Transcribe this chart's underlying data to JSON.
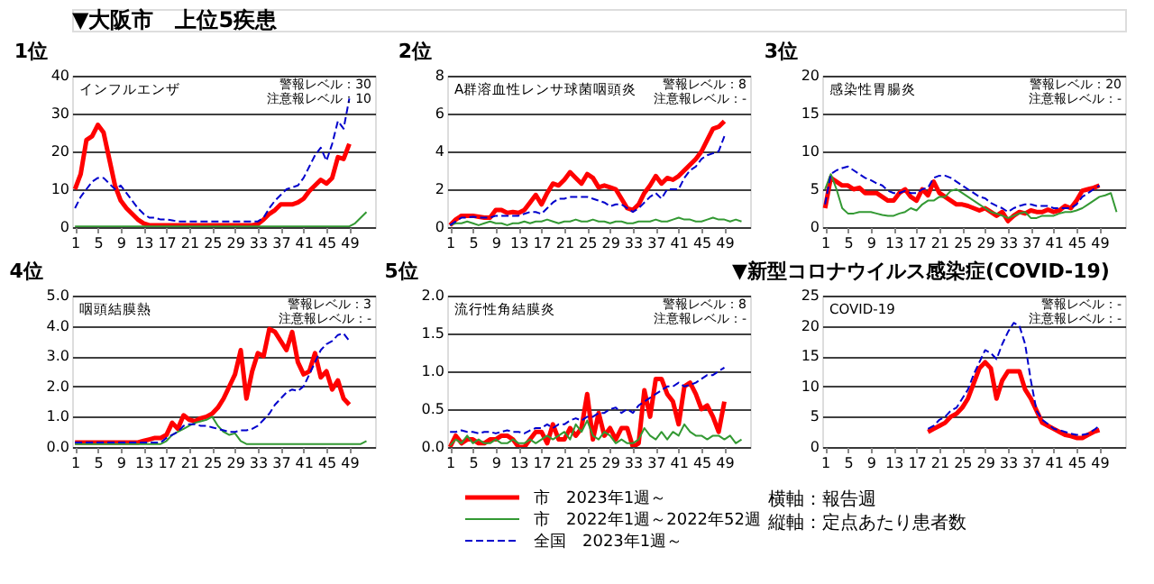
{
  "chart_data": [
    {
      "type": "other",
      "title": "▼大阪市　上位5疾患"
    },
    {
      "type": "line",
      "title": "1位",
      "annotations": [
        "インフルエンザ",
        "警報レベル：30",
        "注意報レベル：10"
      ],
      "xlim": [
        0.5,
        53.5
      ],
      "xticks": [
        1,
        5,
        9,
        13,
        17,
        21,
        25,
        29,
        33,
        37,
        41,
        45,
        49
      ],
      "ylim": [
        0,
        40
      ],
      "yticks": [
        0,
        10,
        20,
        30,
        40
      ],
      "grid": "y",
      "marker": "none",
      "legend": false,
      "x": [
        1,
        2,
        3,
        4,
        5,
        6,
        7,
        8,
        9,
        10,
        11,
        12,
        13,
        14,
        15,
        16,
        17,
        18,
        19,
        20,
        21,
        22,
        23,
        24,
        25,
        26,
        27,
        28,
        29,
        30,
        31,
        32,
        33,
        34,
        35,
        36,
        37,
        38,
        39,
        40,
        41,
        42,
        43,
        44,
        45,
        46,
        47,
        48,
        49,
        50,
        51,
        52
      ],
      "series": [
        {
          "color": "#ff0000",
          "line_style": "solid",
          "x": [
            1,
            2,
            3,
            4,
            5,
            6,
            7,
            8,
            9,
            10,
            11,
            12,
            13,
            14,
            15,
            16,
            17,
            18,
            19,
            20,
            21,
            22,
            23,
            24,
            25,
            26,
            27,
            28,
            29,
            30,
            31,
            32,
            33,
            34,
            35,
            36,
            37,
            38,
            39,
            40,
            41,
            42,
            43,
            44,
            45,
            46,
            47,
            48,
            49
          ],
          "values": [
            10,
            14,
            23,
            24,
            27,
            25,
            18,
            11,
            7,
            5,
            3.5,
            2,
            1,
            0.5,
            0.5,
            0.5,
            0.5,
            0.5,
            0.5,
            0.5,
            0.5,
            0.5,
            0.5,
            0.5,
            0.5,
            0.5,
            0.5,
            0.5,
            0.5,
            0.5,
            0.5,
            0.5,
            0.8,
            2,
            3.5,
            4.5,
            6,
            6,
            6,
            6.5,
            7.5,
            9.5,
            11,
            12.5,
            11.5,
            13,
            18.5,
            18,
            22
          ]
        },
        {
          "color": "#339933",
          "line_style": "solid",
          "values": [
            0.2,
            0.2,
            0.2,
            0.2,
            0.2,
            0.2,
            0.2,
            0.2,
            0.2,
            0.2,
            0.2,
            0.2,
            0.2,
            0.2,
            0.2,
            0.2,
            0.2,
            0.2,
            0.2,
            0.2,
            0.2,
            0.2,
            0.2,
            0.2,
            0.2,
            0.2,
            0.2,
            0.2,
            0.2,
            0.2,
            0.2,
            0.2,
            0.2,
            0.2,
            0.2,
            0.2,
            0.2,
            0.2,
            0.2,
            0.2,
            0.2,
            0.2,
            0.2,
            0.2,
            0.2,
            0.2,
            0.2,
            0.2,
            0.2,
            1,
            2.5,
            4
          ]
        },
        {
          "color": "#0000cc",
          "line_style": "dashed",
          "x": [
            1,
            2,
            3,
            4,
            5,
            6,
            7,
            8,
            9,
            10,
            11,
            12,
            13,
            14,
            15,
            16,
            17,
            18,
            19,
            20,
            21,
            22,
            23,
            24,
            25,
            26,
            27,
            28,
            29,
            30,
            31,
            32,
            33,
            34,
            35,
            36,
            37,
            38,
            39,
            40,
            41,
            42,
            43,
            44,
            45,
            46,
            47,
            48,
            49
          ],
          "values": [
            5,
            8,
            10,
            12,
            13,
            13,
            11.5,
            10,
            11,
            9,
            7,
            5,
            3.5,
            2.5,
            2.5,
            2,
            2,
            1.8,
            1.5,
            1.5,
            1.5,
            1.5,
            1.5,
            1.5,
            1.5,
            1.5,
            1.5,
            1.5,
            1.5,
            1.5,
            1.5,
            1.5,
            1.5,
            2.5,
            5,
            7,
            8.5,
            10,
            10.5,
            11,
            13,
            16,
            19,
            21,
            17.5,
            22,
            28,
            26,
            34
          ]
        }
      ]
    },
    {
      "type": "line",
      "title": "2位",
      "annotations": [
        "A群溶血性レンサ球菌咽頭炎",
        "警報レベル：8",
        "注意報レベル：-"
      ],
      "xlim": [
        0.5,
        53.5
      ],
      "xticks": [
        1,
        5,
        9,
        13,
        17,
        21,
        25,
        29,
        33,
        37,
        41,
        45,
        49
      ],
      "ylim": [
        0,
        8
      ],
      "yticks": [
        0,
        2,
        4,
        6,
        8
      ],
      "grid": "y",
      "marker": "none",
      "legend": false,
      "x": [
        1,
        2,
        3,
        4,
        5,
        6,
        7,
        8,
        9,
        10,
        11,
        12,
        13,
        14,
        15,
        16,
        17,
        18,
        19,
        20,
        21,
        22,
        23,
        24,
        25,
        26,
        27,
        28,
        29,
        30,
        31,
        32,
        33,
        34,
        35,
        36,
        37,
        38,
        39,
        40,
        41,
        42,
        43,
        44,
        45,
        46,
        47,
        48,
        49,
        50,
        51,
        52
      ],
      "series": [
        {
          "color": "#ff0000",
          "line_style": "solid",
          "x": [
            1,
            2,
            3,
            4,
            5,
            6,
            7,
            8,
            9,
            10,
            11,
            12,
            13,
            14,
            15,
            16,
            17,
            18,
            19,
            20,
            21,
            22,
            23,
            24,
            25,
            26,
            27,
            28,
            29,
            30,
            31,
            32,
            33,
            34,
            35,
            36,
            37,
            38,
            39,
            40,
            41,
            42,
            43,
            44,
            45,
            46,
            47,
            48,
            49
          ],
          "values": [
            0.1,
            0.4,
            0.6,
            0.6,
            0.6,
            0.55,
            0.5,
            0.5,
            0.9,
            0.9,
            0.75,
            0.8,
            0.75,
            0.9,
            1.3,
            1.7,
            1.2,
            1.8,
            2.3,
            2.2,
            2.5,
            2.9,
            2.6,
            2.3,
            2.8,
            2.6,
            2.1,
            2.2,
            2.1,
            2.0,
            1.5,
            1.0,
            0.9,
            1.2,
            1.8,
            2.2,
            2.7,
            2.3,
            2.6,
            2.5,
            2.7,
            3.0,
            3.3,
            3.6,
            4.0,
            4.6,
            5.2,
            5.3,
            5.6
          ]
        },
        {
          "color": "#339933",
          "line_style": "solid",
          "values": [
            0.1,
            0.2,
            0.2,
            0.3,
            0.2,
            0.1,
            0.2,
            0.3,
            0.2,
            0.2,
            0.1,
            0.2,
            0.2,
            0.3,
            0.2,
            0.3,
            0.3,
            0.4,
            0.3,
            0.2,
            0.3,
            0.3,
            0.4,
            0.3,
            0.3,
            0.4,
            0.3,
            0.3,
            0.2,
            0.3,
            0.3,
            0.2,
            0.2,
            0.3,
            0.3,
            0.3,
            0.4,
            0.3,
            0.3,
            0.4,
            0.5,
            0.4,
            0.4,
            0.3,
            0.3,
            0.4,
            0.5,
            0.4,
            0.4,
            0.3,
            0.4,
            0.3
          ]
        },
        {
          "color": "#0000cc",
          "line_style": "dashed",
          "x": [
            1,
            2,
            3,
            4,
            5,
            6,
            7,
            8,
            9,
            10,
            11,
            12,
            13,
            14,
            15,
            16,
            17,
            18,
            19,
            20,
            21,
            22,
            23,
            24,
            25,
            26,
            27,
            28,
            29,
            30,
            31,
            32,
            33,
            34,
            35,
            36,
            37,
            38,
            39,
            40,
            41,
            42,
            43,
            44,
            45,
            46,
            47,
            48,
            49
          ],
          "values": [
            0.1,
            0.3,
            0.5,
            0.5,
            0.55,
            0.5,
            0.5,
            0.5,
            0.6,
            0.6,
            0.6,
            0.6,
            0.6,
            0.7,
            0.8,
            0.8,
            0.7,
            1.0,
            1.3,
            1.5,
            1.5,
            1.6,
            1.6,
            1.6,
            1.6,
            1.5,
            1.4,
            1.3,
            1.1,
            1.2,
            1.2,
            1.0,
            0.8,
            1.0,
            1.3,
            1.6,
            1.8,
            1.5,
            2.0,
            2.0,
            2.0,
            2.6,
            3.0,
            3.2,
            3.6,
            3.8,
            3.9,
            4.0,
            4.8
          ]
        }
      ]
    },
    {
      "type": "line",
      "title": "3位",
      "annotations": [
        "感染性胃腸炎",
        "警報レベル：20",
        "注意報レベル：-"
      ],
      "xlim": [
        0.5,
        53.5
      ],
      "xticks": [
        1,
        5,
        9,
        13,
        17,
        21,
        25,
        29,
        33,
        37,
        41,
        45,
        49
      ],
      "ylim": [
        0,
        20
      ],
      "yticks": [
        0,
        5,
        10,
        15,
        20
      ],
      "grid": "y",
      "marker": "none",
      "legend": false,
      "x": [
        1,
        2,
        3,
        4,
        5,
        6,
        7,
        8,
        9,
        10,
        11,
        12,
        13,
        14,
        15,
        16,
        17,
        18,
        19,
        20,
        21,
        22,
        23,
        24,
        25,
        26,
        27,
        28,
        29,
        30,
        31,
        32,
        33,
        34,
        35,
        36,
        37,
        38,
        39,
        40,
        41,
        42,
        43,
        44,
        45,
        46,
        47,
        48,
        49,
        50,
        51,
        52
      ],
      "series": [
        {
          "color": "#ff0000",
          "line_style": "solid",
          "x": [
            1,
            2,
            3,
            4,
            5,
            6,
            7,
            8,
            9,
            10,
            11,
            12,
            13,
            14,
            15,
            16,
            17,
            18,
            19,
            20,
            21,
            22,
            23,
            24,
            25,
            26,
            27,
            28,
            29,
            30,
            31,
            32,
            33,
            34,
            35,
            36,
            37,
            38,
            39,
            40,
            41,
            42,
            43,
            44,
            45,
            46,
            47,
            48,
            49
          ],
          "values": [
            2.5,
            6.5,
            6,
            5.5,
            5.5,
            5,
            5.2,
            4.5,
            4.5,
            4.5,
            4,
            3.5,
            3.5,
            4.5,
            5,
            4,
            3.5,
            5,
            4.2,
            6,
            4.5,
            4,
            3.5,
            3,
            3,
            2.8,
            2.5,
            2.2,
            2.5,
            2,
            1.5,
            2,
            0.8,
            1.5,
            2,
            1.8,
            2.2,
            2,
            2,
            2.3,
            2,
            2.2,
            2.8,
            2.5,
            3.5,
            4.8,
            5,
            5.2,
            5.5
          ]
        },
        {
          "color": "#339933",
          "line_style": "solid",
          "values": [
            5,
            7,
            5,
            2.5,
            1.8,
            1.8,
            2,
            2,
            2,
            1.8,
            1.6,
            1.5,
            1.5,
            1.8,
            2,
            2.5,
            2.2,
            3,
            3.5,
            3.5,
            4,
            4,
            4.8,
            5,
            4.5,
            4,
            3.5,
            3,
            2.5,
            2,
            1.8,
            1.5,
            1.2,
            1.5,
            1.8,
            2,
            1.2,
            1.2,
            1.5,
            1.5,
            1.5,
            1.8,
            2,
            2,
            2.2,
            2.5,
            3,
            3.5,
            4,
            4.2,
            4.5,
            2
          ]
        },
        {
          "color": "#0000cc",
          "line_style": "dashed",
          "x": [
            1,
            2,
            3,
            4,
            5,
            6,
            7,
            8,
            9,
            10,
            11,
            12,
            13,
            14,
            15,
            16,
            17,
            18,
            19,
            20,
            21,
            22,
            23,
            24,
            25,
            26,
            27,
            28,
            29,
            30,
            31,
            32,
            33,
            34,
            35,
            36,
            37,
            38,
            39,
            40,
            41,
            42,
            43,
            44,
            45,
            46,
            47,
            48,
            49
          ],
          "values": [
            3,
            7,
            7.5,
            7.8,
            8,
            7.5,
            7,
            6.5,
            6.2,
            5.8,
            5.5,
            4.8,
            4.5,
            4.5,
            4.8,
            4.5,
            4.5,
            5,
            5.2,
            6.5,
            6.8,
            6.8,
            6.5,
            6,
            5.5,
            5,
            4.5,
            4,
            3.8,
            3.2,
            2.8,
            2.5,
            2,
            2.5,
            2.8,
            3,
            3,
            2.8,
            2.8,
            2.8,
            2.5,
            2.5,
            2.5,
            2.5,
            3,
            4,
            4.5,
            5,
            5.5
          ]
        }
      ]
    },
    {
      "type": "line",
      "title": "4位",
      "annotations": [
        "咽頭結膜熱",
        "警報レベル：3",
        "注意報レベル：-"
      ],
      "xlim": [
        0.5,
        53.5
      ],
      "xticks": [
        1,
        5,
        9,
        13,
        17,
        21,
        25,
        29,
        33,
        37,
        41,
        45,
        49
      ],
      "ylim": [
        0,
        5
      ],
      "yticks": [
        {
          "value": 0,
          "label": "0.0"
        },
        {
          "value": 1,
          "label": "1.0"
        },
        {
          "value": 2,
          "label": "2.0"
        },
        {
          "value": 3,
          "label": "3.0"
        },
        {
          "value": 4,
          "label": "4.0"
        },
        {
          "value": 5,
          "label": "5.0"
        }
      ],
      "grid": "y",
      "marker": "none",
      "legend": false,
      "x": [
        1,
        2,
        3,
        4,
        5,
        6,
        7,
        8,
        9,
        10,
        11,
        12,
        13,
        14,
        15,
        16,
        17,
        18,
        19,
        20,
        21,
        22,
        23,
        24,
        25,
        26,
        27,
        28,
        29,
        30,
        31,
        32,
        33,
        34,
        35,
        36,
        37,
        38,
        39,
        40,
        41,
        42,
        43,
        44,
        45,
        46,
        47,
        48,
        49,
        50,
        51,
        52
      ],
      "series": [
        {
          "color": "#ff0000",
          "line_style": "solid",
          "x": [
            1,
            2,
            3,
            4,
            5,
            6,
            7,
            8,
            9,
            10,
            11,
            12,
            13,
            14,
            15,
            16,
            17,
            18,
            19,
            20,
            21,
            22,
            23,
            24,
            25,
            26,
            27,
            28,
            29,
            30,
            31,
            32,
            33,
            34,
            35,
            36,
            37,
            38,
            39,
            40,
            41,
            42,
            43,
            44,
            45,
            46,
            47,
            48,
            49
          ],
          "values": [
            0.15,
            0.15,
            0.15,
            0.15,
            0.15,
            0.15,
            0.15,
            0.15,
            0.15,
            0.15,
            0.15,
            0.15,
            0.2,
            0.25,
            0.3,
            0.3,
            0.4,
            0.8,
            0.6,
            1.05,
            0.9,
            0.85,
            0.95,
            1.0,
            1.1,
            1.3,
            1.6,
            2.0,
            2.4,
            3.2,
            1.6,
            2.5,
            3.1,
            3.0,
            3.9,
            3.8,
            3.5,
            3.2,
            3.8,
            2.8,
            2.4,
            2.5,
            3.1,
            2.3,
            2.5,
            1.9,
            2.2,
            1.6,
            1.4
          ]
        },
        {
          "color": "#339933",
          "line_style": "solid",
          "values": [
            0.1,
            0.1,
            0.1,
            0.1,
            0.1,
            0.1,
            0.1,
            0.1,
            0.1,
            0.1,
            0.1,
            0.1,
            0.1,
            0.1,
            0.1,
            0.1,
            0.2,
            0.4,
            0.5,
            0.6,
            0.7,
            0.8,
            0.85,
            0.9,
            1.0,
            0.7,
            0.5,
            0.4,
            0.45,
            0.2,
            0.1,
            0.1,
            0.1,
            0.1,
            0.1,
            0.1,
            0.1,
            0.1,
            0.1,
            0.1,
            0.1,
            0.1,
            0.1,
            0.1,
            0.1,
            0.1,
            0.1,
            0.1,
            0.1,
            0.1,
            0.1,
            0.2
          ]
        },
        {
          "color": "#0000cc",
          "line_style": "dashed",
          "x": [
            1,
            2,
            3,
            4,
            5,
            6,
            7,
            8,
            9,
            10,
            11,
            12,
            13,
            14,
            15,
            16,
            17,
            18,
            19,
            20,
            21,
            22,
            23,
            24,
            25,
            26,
            27,
            28,
            29,
            30,
            31,
            32,
            33,
            34,
            35,
            36,
            37,
            38,
            39,
            40,
            41,
            42,
            43,
            44,
            45,
            46,
            47,
            48,
            49
          ],
          "values": [
            0.15,
            0.15,
            0.15,
            0.15,
            0.15,
            0.15,
            0.15,
            0.15,
            0.15,
            0.15,
            0.15,
            0.15,
            0.15,
            0.15,
            0.15,
            0.15,
            0.3,
            0.4,
            0.5,
            0.7,
            0.75,
            0.75,
            0.7,
            0.7,
            0.65,
            0.6,
            0.55,
            0.5,
            0.5,
            0.55,
            0.55,
            0.6,
            0.7,
            0.9,
            1.1,
            1.4,
            1.6,
            1.8,
            1.9,
            1.85,
            2.0,
            2.4,
            2.8,
            3.2,
            3.4,
            3.5,
            3.7,
            3.75,
            3.5
          ]
        }
      ]
    },
    {
      "type": "line",
      "title": "5位",
      "annotations": [
        "流行性角結膜炎",
        "警報レベル：8",
        "注意報レベル：-"
      ],
      "xlim": [
        0.5,
        53.5
      ],
      "xticks": [
        1,
        5,
        9,
        13,
        17,
        21,
        25,
        29,
        33,
        37,
        41,
        45,
        49
      ],
      "ylim": [
        0,
        2
      ],
      "yticks": [
        {
          "value": 0,
          "label": "0.0"
        },
        {
          "value": 0.5,
          "label": "0.5"
        },
        {
          "value": 1,
          "label": "1.0"
        },
        {
          "value": 1.5,
          "label": "1.5"
        },
        {
          "value": 2,
          "label": "2.0"
        }
      ],
      "grid": "y",
      "marker": "none",
      "legend": "bottom",
      "x": [
        1,
        2,
        3,
        4,
        5,
        6,
        7,
        8,
        9,
        10,
        11,
        12,
        13,
        14,
        15,
        16,
        17,
        18,
        19,
        20,
        21,
        22,
        23,
        24,
        25,
        26,
        27,
        28,
        29,
        30,
        31,
        32,
        33,
        34,
        35,
        36,
        37,
        38,
        39,
        40,
        41,
        42,
        43,
        44,
        45,
        46,
        47,
        48,
        49,
        50,
        51,
        52
      ],
      "series": [
        {
          "name": "市　2023年1週～",
          "color": "#ff0000",
          "line_style": "solid",
          "x": [
            1,
            2,
            3,
            4,
            5,
            6,
            7,
            8,
            9,
            10,
            11,
            12,
            13,
            14,
            15,
            16,
            17,
            18,
            19,
            20,
            21,
            22,
            23,
            24,
            25,
            26,
            27,
            28,
            29,
            30,
            31,
            32,
            33,
            34,
            35,
            36,
            37,
            38,
            39,
            40,
            41,
            42,
            43,
            44,
            45,
            46,
            47,
            48,
            49
          ],
          "values": [
            0,
            0.15,
            0.05,
            0.1,
            0.1,
            0.05,
            0.05,
            0.1,
            0.1,
            0.15,
            0.15,
            0.1,
            0,
            0,
            0.1,
            0.2,
            0.2,
            0.05,
            0.3,
            0.1,
            0.1,
            0.25,
            0.15,
            0.25,
            0.7,
            0.1,
            0.45,
            0.15,
            0.25,
            0.1,
            0.25,
            0.25,
            0,
            0.05,
            0.75,
            0.4,
            0.9,
            0.9,
            0.7,
            0.6,
            0.3,
            0.8,
            0.85,
            0.7,
            0.5,
            0.55,
            0.4,
            0.2,
            0.6
          ]
        },
        {
          "name": "市　2022年1週～2022年52週",
          "color": "#339933",
          "line_style": "solid",
          "values": [
            0.02,
            0.1,
            0.05,
            0.15,
            0.05,
            0.1,
            0.05,
            0.05,
            0.1,
            0.05,
            0.05,
            0.1,
            0.05,
            0.05,
            0.1,
            0.05,
            0.1,
            0.15,
            0.1,
            0.15,
            0.2,
            0.1,
            0.3,
            0.2,
            0.35,
            0.15,
            0.1,
            0.2,
            0.15,
            0.05,
            0.1,
            0.05,
            0.05,
            0.1,
            0.25,
            0.15,
            0.1,
            0.2,
            0.1,
            0.2,
            0.15,
            0.3,
            0.2,
            0.15,
            0.15,
            0.1,
            0.15,
            0.15,
            0.1,
            0.15,
            0.05,
            0.1
          ]
        },
        {
          "name": "全国　2023年1週～",
          "color": "#0000cc",
          "line_style": "dashed",
          "x": [
            1,
            2,
            3,
            4,
            5,
            6,
            7,
            8,
            9,
            10,
            11,
            12,
            13,
            14,
            15,
            16,
            17,
            18,
            19,
            20,
            21,
            22,
            23,
            24,
            25,
            26,
            27,
            28,
            29,
            30,
            31,
            32,
            33,
            34,
            35,
            36,
            37,
            38,
            39,
            40,
            41,
            42,
            43,
            44,
            45,
            46,
            47,
            48,
            49
          ],
          "values": [
            0.2,
            0.2,
            0.22,
            0.2,
            0.2,
            0.18,
            0.2,
            0.2,
            0.18,
            0.2,
            0.22,
            0.2,
            0.2,
            0.18,
            0.22,
            0.25,
            0.25,
            0.3,
            0.25,
            0.3,
            0.3,
            0.35,
            0.38,
            0.35,
            0.4,
            0.4,
            0.45,
            0.45,
            0.5,
            0.52,
            0.45,
            0.5,
            0.45,
            0.55,
            0.6,
            0.65,
            0.7,
            0.75,
            0.8,
            0.8,
            0.85,
            0.8,
            0.82,
            0.85,
            0.9,
            0.95,
            0.95,
            1.0,
            1.05
          ]
        }
      ]
    },
    {
      "type": "line",
      "title": "▼新型コロナウイルス感染症(COVID-19)",
      "annotations": [
        "COVID-19",
        "警報レベル：-",
        "注意報レベル：-",
        "横軸：報告週",
        "縦軸：定点あたり患者数"
      ],
      "xlim": [
        0.5,
        53.5
      ],
      "xticks": [
        1,
        5,
        9,
        13,
        17,
        21,
        25,
        29,
        33,
        37,
        41,
        45,
        49
      ],
      "ylim": [
        0,
        25
      ],
      "yticks": [
        0,
        5,
        10,
        15,
        20,
        25
      ],
      "grid": "y",
      "marker": "none",
      "legend": false,
      "series": [
        {
          "color": "#ff0000",
          "line_style": "solid",
          "x": [
            19,
            20,
            21,
            22,
            23,
            24,
            25,
            26,
            27,
            28,
            29,
            30,
            31,
            32,
            33,
            34,
            35,
            36,
            37,
            38,
            39,
            40,
            41,
            42,
            43,
            44,
            45,
            46,
            47,
            48,
            49
          ],
          "values": [
            2.5,
            3,
            3.5,
            4,
            5,
            5.5,
            6.5,
            8,
            10.5,
            13,
            14,
            13,
            8,
            11,
            12.5,
            12.5,
            12.5,
            9.5,
            8,
            6,
            4,
            3.5,
            3,
            2.5,
            2,
            1.8,
            1.5,
            1.5,
            2,
            2.5,
            2.8
          ]
        },
        {
          "color": "#0000cc",
          "line_style": "dashed",
          "x": [
            19,
            20,
            21,
            22,
            23,
            24,
            25,
            26,
            27,
            28,
            29,
            30,
            31,
            32,
            33,
            34,
            35,
            36,
            37,
            38,
            39,
            40,
            41,
            42,
            43,
            44,
            45,
            46,
            47,
            48,
            49
          ],
          "values": [
            3,
            3.5,
            4.5,
            5,
            6,
            6.5,
            8,
            9.5,
            12,
            14,
            16,
            15.5,
            14.5,
            17,
            19,
            20.5,
            20,
            17,
            11,
            6,
            4.5,
            3.8,
            3,
            2.8,
            2.5,
            2.2,
            2,
            2,
            2.2,
            2.8,
            3.5
          ]
        }
      ]
    }
  ]
}
